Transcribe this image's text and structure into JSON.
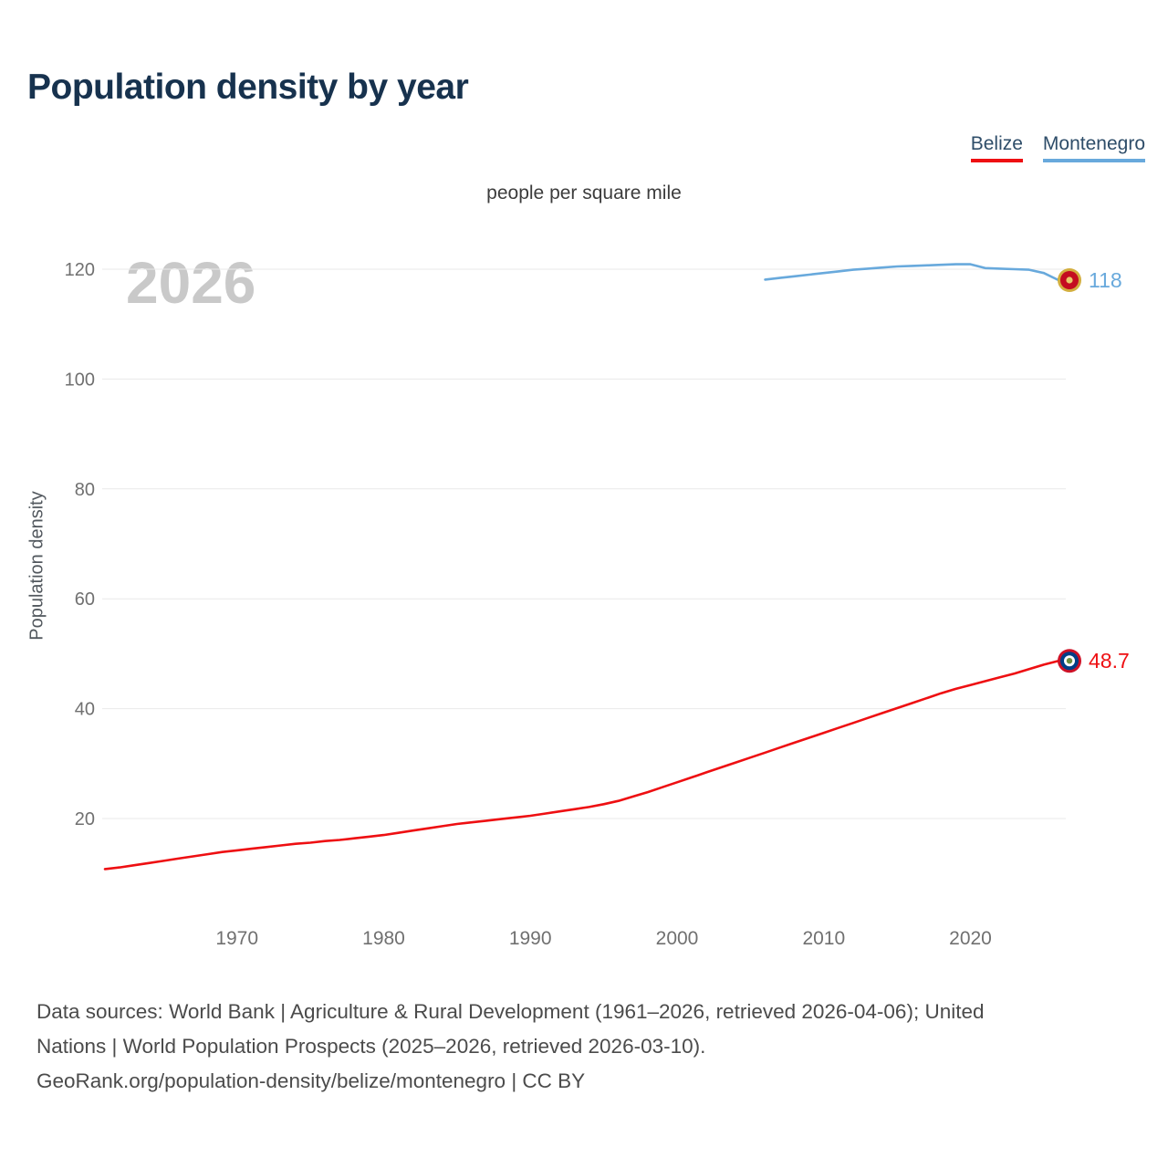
{
  "chart_data": {
    "type": "line",
    "title": "Population density by year",
    "subtitle": "people per square mile",
    "ylabel": "Population density",
    "watermark": "2026",
    "legend_position": "top-right",
    "grid": "horizontal",
    "x_range": [
      1961,
      2026
    ],
    "x_ticks": [
      1970,
      1980,
      1990,
      2000,
      2010,
      2020
    ],
    "y_ticks": [
      20,
      40,
      60,
      80,
      100,
      120
    ],
    "series": [
      {
        "name": "Belize",
        "color": "#ee0f12",
        "end_label": "48.7",
        "flag": "belize",
        "flag_colors": [
          "#ce1126",
          "#003f87",
          "#ffffff",
          "#6a8f3f"
        ],
        "points": [
          [
            1961,
            10.8
          ],
          [
            1962,
            11.1
          ],
          [
            1963,
            11.5
          ],
          [
            1964,
            11.9
          ],
          [
            1965,
            12.3
          ],
          [
            1966,
            12.7
          ],
          [
            1967,
            13.1
          ],
          [
            1968,
            13.5
          ],
          [
            1969,
            13.9
          ],
          [
            1970,
            14.2
          ],
          [
            1971,
            14.5
          ],
          [
            1972,
            14.8
          ],
          [
            1973,
            15.1
          ],
          [
            1974,
            15.4
          ],
          [
            1975,
            15.6
          ],
          [
            1976,
            15.9
          ],
          [
            1977,
            16.1
          ],
          [
            1978,
            16.4
          ],
          [
            1979,
            16.7
          ],
          [
            1980,
            17.0
          ],
          [
            1981,
            17.4
          ],
          [
            1982,
            17.8
          ],
          [
            1983,
            18.2
          ],
          [
            1984,
            18.6
          ],
          [
            1985,
            19.0
          ],
          [
            1986,
            19.3
          ],
          [
            1987,
            19.6
          ],
          [
            1988,
            19.9
          ],
          [
            1989,
            20.2
          ],
          [
            1990,
            20.5
          ],
          [
            1991,
            20.9
          ],
          [
            1992,
            21.3
          ],
          [
            1993,
            21.7
          ],
          [
            1994,
            22.1
          ],
          [
            1995,
            22.6
          ],
          [
            1996,
            23.2
          ],
          [
            1997,
            24.0
          ],
          [
            1998,
            24.8
          ],
          [
            1999,
            25.7
          ],
          [
            2000,
            26.6
          ],
          [
            2001,
            27.5
          ],
          [
            2002,
            28.4
          ],
          [
            2003,
            29.3
          ],
          [
            2004,
            30.2
          ],
          [
            2005,
            31.1
          ],
          [
            2006,
            32.0
          ],
          [
            2007,
            32.9
          ],
          [
            2008,
            33.8
          ],
          [
            2009,
            34.7
          ],
          [
            2010,
            35.6
          ],
          [
            2011,
            36.5
          ],
          [
            2012,
            37.4
          ],
          [
            2013,
            38.3
          ],
          [
            2014,
            39.2
          ],
          [
            2015,
            40.1
          ],
          [
            2016,
            41.0
          ],
          [
            2017,
            41.9
          ],
          [
            2018,
            42.8
          ],
          [
            2019,
            43.6
          ],
          [
            2020,
            44.3
          ],
          [
            2021,
            45.0
          ],
          [
            2022,
            45.7
          ],
          [
            2023,
            46.4
          ],
          [
            2024,
            47.2
          ],
          [
            2025,
            48.0
          ],
          [
            2026,
            48.7
          ]
        ]
      },
      {
        "name": "Montenegro",
        "color": "#68a9dc",
        "end_label": "118",
        "flag": "montenegro",
        "flag_colors": [
          "#d3ae3e",
          "#c40c20",
          "#e8c96a"
        ],
        "points": [
          [
            2006,
            118.1
          ],
          [
            2007,
            118.4
          ],
          [
            2008,
            118.7
          ],
          [
            2009,
            119.0
          ],
          [
            2010,
            119.3
          ],
          [
            2011,
            119.6
          ],
          [
            2012,
            119.9
          ],
          [
            2013,
            120.1
          ],
          [
            2014,
            120.3
          ],
          [
            2015,
            120.5
          ],
          [
            2016,
            120.6
          ],
          [
            2017,
            120.7
          ],
          [
            2018,
            120.8
          ],
          [
            2019,
            120.9
          ],
          [
            2020,
            120.9
          ],
          [
            2021,
            120.2
          ],
          [
            2022,
            120.1
          ],
          [
            2023,
            120.0
          ],
          [
            2024,
            119.9
          ],
          [
            2025,
            119.3
          ],
          [
            2026,
            118.0
          ]
        ]
      }
    ]
  },
  "footer": {
    "lines": [
      "Data sources: World Bank | Agriculture & Rural Development (1961–2026, retrieved 2026-04-06); United",
      "Nations | World Population Prospects (2025–2026, retrieved 2026-03-10).",
      "GeoRank.org/population-density/belize/montenegro | CC BY"
    ]
  }
}
